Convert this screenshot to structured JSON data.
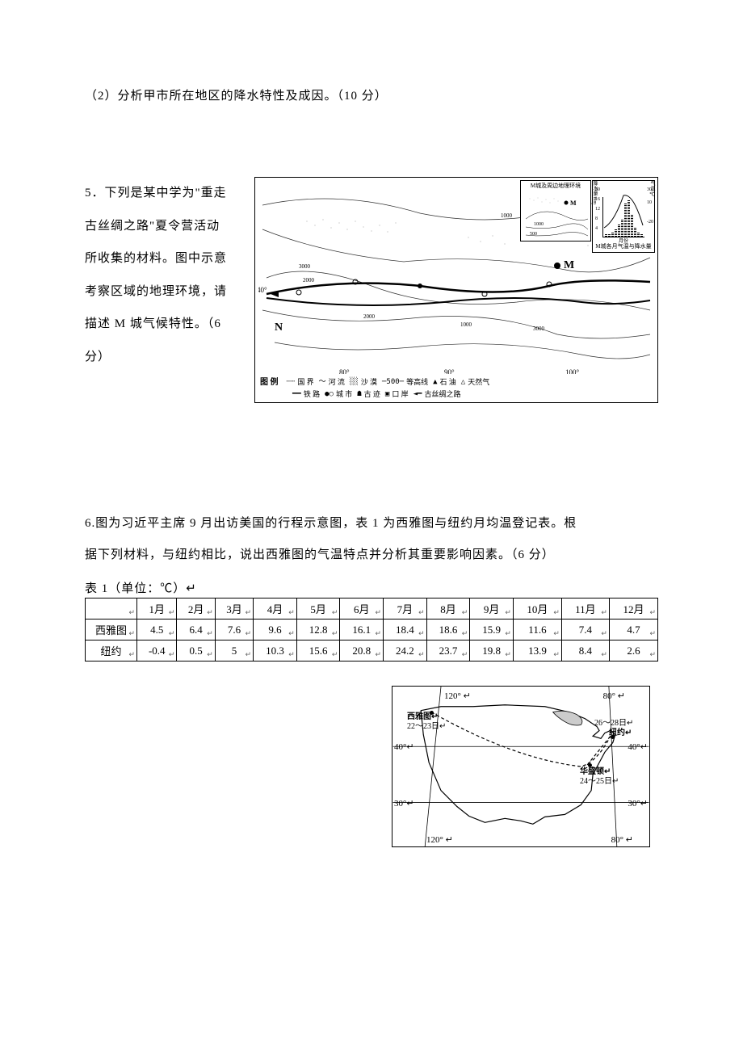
{
  "q2": {
    "text": "（2）分析甲市所在地区的降水特性及成因。（10 分）"
  },
  "q5": {
    "textLine1": "5．下列是某中学为\"重走",
    "textLine2": "古丝绸之路\"夏令营活动",
    "textLine3": "所收集的材料。图中示意",
    "textLine4": "考察区域的地理环境，请",
    "textLine5": "描述 M 城气候特性。（6",
    "textLine6": "分）",
    "map": {
      "insetTitle": "M城及周边地理环境",
      "chartCaption": "M城各月气温与降水量",
      "chartXLabel": "月份",
      "yLabel1": "降水量/mm",
      "yLabel2": "气温/℃",
      "bars": [
        2,
        3,
        4,
        6,
        10,
        14,
        28,
        30,
        18,
        8,
        4,
        3
      ],
      "legendTitle": "图 例",
      "legendRow1": [
        {
          "symbol": "┄┄",
          "label": "国 界"
        },
        {
          "symbol": "～",
          "label": "河 流"
        },
        {
          "symbol": "░░",
          "label": "沙 漠"
        },
        {
          "symbol": "─500─",
          "label": "等高线"
        },
        {
          "symbol": "▲",
          "label": "石 油"
        },
        {
          "symbol": "△",
          "label": "天然气"
        }
      ],
      "legendRow2": [
        {
          "symbol": "━━",
          "label": "铁 路"
        },
        {
          "symbol": "●○",
          "label": "城 市"
        },
        {
          "symbol": "☗",
          "label": "古 迹"
        },
        {
          "symbol": "▣",
          "label": "口 岸"
        },
        {
          "symbol": "◄━",
          "label": "古丝绸之路"
        }
      ],
      "degrees": {
        "d80": "80°",
        "d90": "90°",
        "d100": "100°",
        "d40": "40°"
      },
      "markerM": "M",
      "markerN": "N"
    }
  },
  "q6": {
    "textLine1": "6.图为习近平主席 9 月出访美国的行程示意图，表 1 为西雅图与纽约月均温登记表。根",
    "textLine2": "据下列材料，与纽约相比，说出西雅图的气温特点并分析其重要影响因素。（6 分）",
    "tableCaption": "表 1（单位：℃）↵",
    "table": {
      "headers": [
        "",
        "1月",
        "2月",
        "3月",
        "4月",
        "5月",
        "6月",
        "7月",
        "8月",
        "9月",
        "10月",
        "11月",
        "12月"
      ],
      "rows": [
        {
          "city": "西雅图",
          "values": [
            "4.5",
            "6.4",
            "7.6",
            "9.6",
            "12.8",
            "16.1",
            "18.4",
            "18.6",
            "15.9",
            "11.6",
            "7.4",
            "4.7"
          ]
        },
        {
          "city": "纽约",
          "values": [
            "-0.4",
            "0.5",
            "5",
            "10.3",
            "15.6",
            "20.8",
            "24.2",
            "23.7",
            "19.8",
            "13.9",
            "8.4",
            "2.6"
          ]
        }
      ]
    },
    "usMap": {
      "degTop120": "120° ↵",
      "degTop80": "80° ↵",
      "degBot120": "120° ↵",
      "degBot80": "80° ↵",
      "deg40L": "40°↵",
      "deg40R": "40°↵",
      "deg30L": "30°↵",
      "deg30R": "30°↵",
      "seattle": {
        "name": "西雅图↵",
        "date": "22～23日↵"
      },
      "newyork": {
        "name": "纽约↵",
        "date": "26～28日↵"
      },
      "washington": {
        "name": "华盛顿↵",
        "date": "24～25日↵"
      }
    }
  },
  "cellMarker": "↵"
}
